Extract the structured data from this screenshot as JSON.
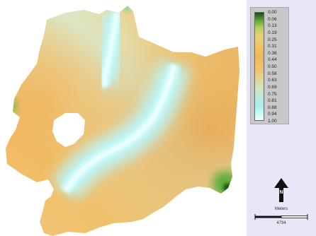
{
  "legend": {
    "values": [
      "0.00",
      "0.06",
      "0.13",
      "0.19",
      "0.25",
      "0.31",
      "0.38",
      "0.44",
      "0.50",
      "0.56",
      "0.63",
      "0.69",
      "0.75",
      "0.81",
      "0.88",
      "0.94",
      "1.00"
    ],
    "ramp_colors": [
      "#1a5a1a",
      "#4aa83a",
      "#b8cf62",
      "#e9c86b",
      "#f2b356",
      "#f2b356",
      "#e8c86c",
      "#c9e2b6",
      "#a8f0ea",
      "#c8fafa",
      "#f0ffff"
    ]
  },
  "north_arrow": {
    "label": "N"
  },
  "scale_bar": {
    "title": "Meters",
    "value": "4794"
  },
  "map": {
    "background": "#ffffff",
    "panel_color": "#e7e7f7"
  }
}
